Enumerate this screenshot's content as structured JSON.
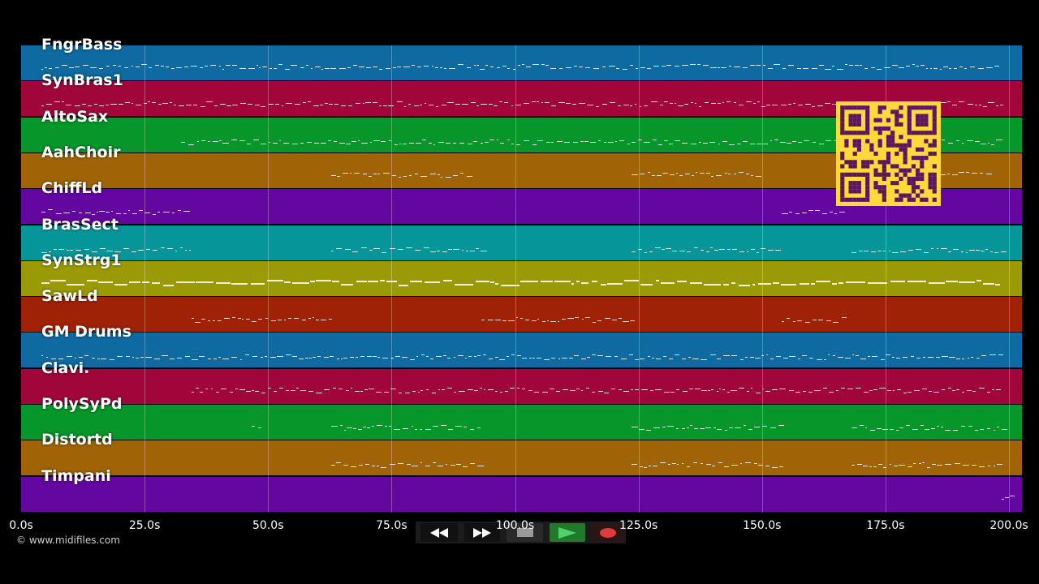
{
  "tracks": [
    {
      "name": "FngrBass",
      "color": "#0e6aa0"
    },
    {
      "name": "SynBras1",
      "color": "#a0063a"
    },
    {
      "name": "AltoSax",
      "color": "#06962a"
    },
    {
      "name": "AahChoir",
      "color": "#a06406"
    },
    {
      "name": "ChiffLd",
      "color": "#6406a0"
    },
    {
      "name": "BrasSect",
      "color": "#06969a"
    },
    {
      "name": "SynStrg1",
      "color": "#9a9a06"
    },
    {
      "name": "SawLd",
      "color": "#a02206"
    },
    {
      "name": "GM Drums",
      "color": "#0e6aa0"
    },
    {
      "name": "Clavi.",
      "color": "#a0063a"
    },
    {
      "name": "PolySyPd",
      "color": "#06962a"
    },
    {
      "name": "Distortd",
      "color": "#a06406"
    },
    {
      "name": "Timpani",
      "color": "#6406a0"
    }
  ],
  "timeline": {
    "max_seconds": 200,
    "ticks": [
      "0.0s",
      "25.0s",
      "50.0s",
      "75.0s",
      "100.0s",
      "125.0s",
      "150.0s",
      "175.0s",
      "200.0s"
    ]
  },
  "copyright": "© www.midifiles.com",
  "transport": {
    "rewind": "rewind-icon",
    "fast_forward": "fast-forward-icon",
    "stop": "stop-icon",
    "play": "play-icon",
    "record": "record-icon"
  },
  "qr_color": "#ffd93a"
}
